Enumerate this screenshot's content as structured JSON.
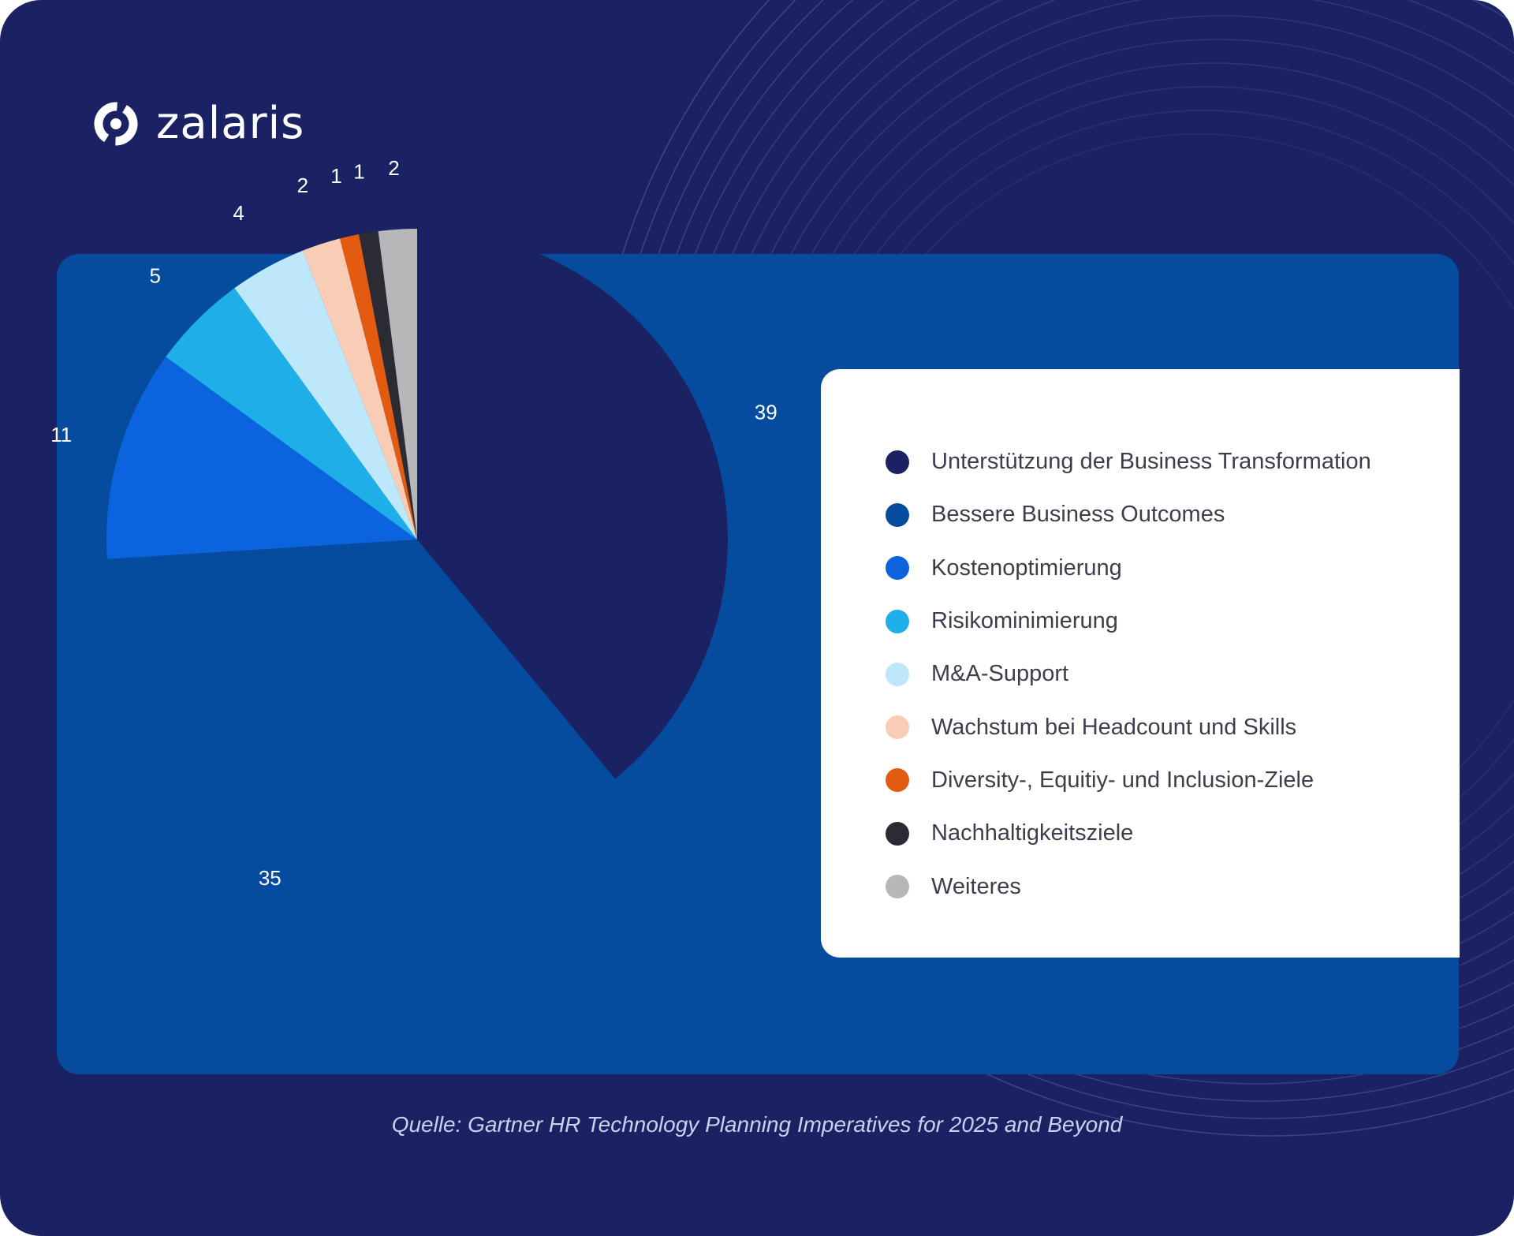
{
  "brand": {
    "name": "zalaris",
    "colors": {
      "background": "#1a2263",
      "panel": "#064c9e",
      "legend_bg": "#ffffff"
    }
  },
  "chart_data": {
    "type": "pie",
    "title": "",
    "categories": [
      "Unterstützung der Business Transformation",
      "Bessere Business Outcomes",
      "Kostenoptimierung",
      "Risikominimierung",
      "M&A-Support",
      "Wachstum bei Headcount und Skills",
      "Diversity-, Equitiy- und Inclusion-Ziele",
      "Nachhaltigkeitsziele",
      "Weiteres"
    ],
    "values": [
      39,
      35,
      11,
      5,
      4,
      2,
      1,
      1,
      2
    ],
    "colors": [
      "#1a2263",
      "#064c9e",
      "#0b63dd",
      "#1eaee8",
      "#bde8fb",
      "#f9ccb6",
      "#e25b10",
      "#2b2c33",
      "#b7b7b9"
    ],
    "start_angle_deg": 0,
    "direction": "clockwise",
    "data_labels": true,
    "legend_position": "right"
  },
  "source": "Quelle: Gartner HR Technology Planning Imperatives for 2025 and Beyond"
}
